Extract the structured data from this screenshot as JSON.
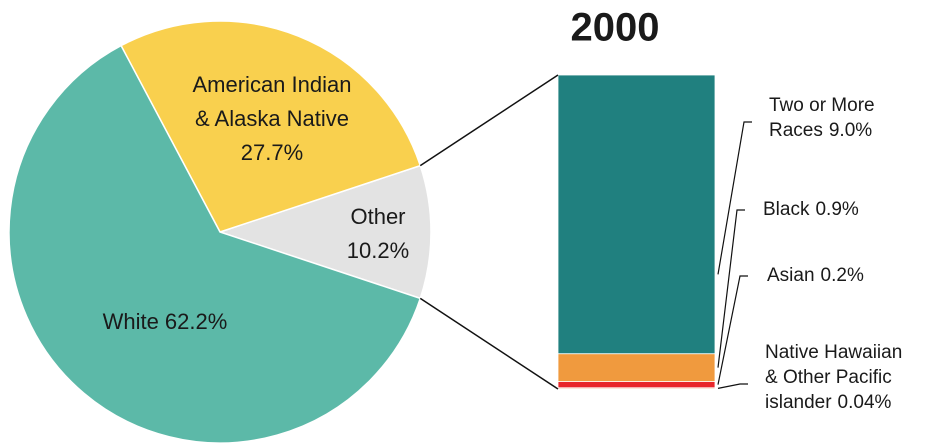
{
  "chart_data": [
    {
      "type": "pie",
      "categories": [
        "Other",
        "American Indian\n& Alaska Native",
        "White"
      ],
      "values": [
        10.2,
        27.7,
        62.2
      ],
      "value_labels": [
        "10.2%",
        "27.7%",
        "62.2%"
      ],
      "colors": [
        "#e3e3e3",
        "#f9d04e",
        "#5cb9a8"
      ]
    },
    {
      "type": "bar",
      "title": "2000",
      "categories": [
        "Native Hawaiian\n& Other Pacific\nislander",
        "Asian",
        "Black",
        "Two or More\nRaces"
      ],
      "values": [
        0.04,
        0.2,
        0.9,
        9.0
      ],
      "value_labels": [
        "0.04%",
        "0.2%",
        "0.9%",
        "9.0%"
      ],
      "colors": [
        "#f7b98a",
        "#e8262a",
        "#f09a3e",
        "#20807f"
      ]
    }
  ]
}
